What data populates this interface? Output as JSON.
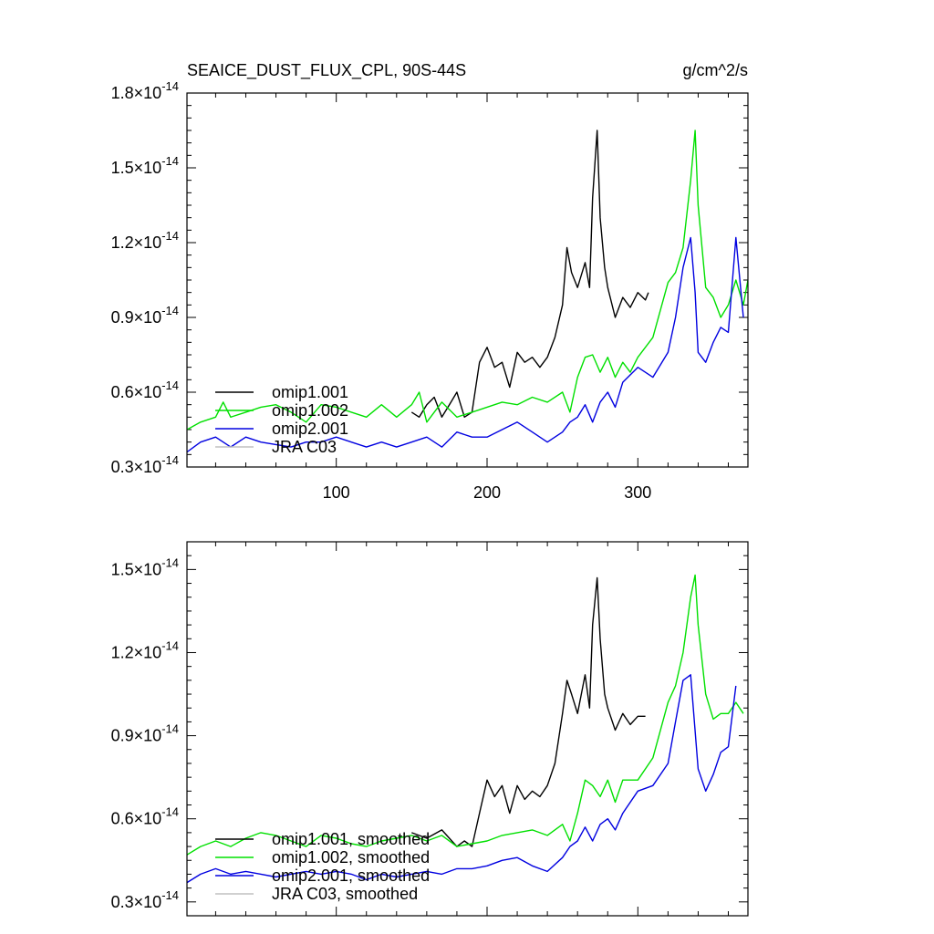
{
  "header": {
    "title": "SEAICE_DUST_FLUX_CPL, 90S-44S",
    "units": "g/cm^2/s"
  },
  "colors": {
    "omip1_001": "#000000",
    "omip1_002": "#00e000",
    "omip2_001": "#0000e0",
    "jra_c03": "#c0c0c0"
  },
  "chart_data": [
    {
      "type": "line",
      "title": "SEAICE_DUST_FLUX_CPL, 90S-44S",
      "units": "g/cm^2/s",
      "xlim": [
        1,
        373
      ],
      "ylim": [
        0.3,
        1.8
      ],
      "y_multiplier": "×10^-14",
      "x_ticks": [
        100,
        200,
        300
      ],
      "x_tick_labels": [
        "100",
        "200",
        "300"
      ],
      "y_ticks": [
        0.3,
        0.6,
        0.9,
        1.2,
        1.5,
        1.8
      ],
      "y_tick_labels": [
        "0.3",
        "0.6",
        "0.9",
        "1.2",
        "1.5",
        "1.8"
      ],
      "legend_position": "bottom-left",
      "series": [
        {
          "name": "omip1.001",
          "x": [
            150,
            155,
            160,
            165,
            170,
            175,
            180,
            185,
            190,
            195,
            200,
            205,
            210,
            215,
            220,
            225,
            230,
            235,
            240,
            245,
            250,
            253,
            256,
            260,
            265,
            268,
            270,
            273,
            275,
            278,
            280,
            285,
            290,
            295,
            300,
            305,
            307
          ],
          "y": [
            0.52,
            0.5,
            0.55,
            0.58,
            0.5,
            0.55,
            0.6,
            0.5,
            0.52,
            0.72,
            0.78,
            0.7,
            0.72,
            0.62,
            0.76,
            0.72,
            0.74,
            0.7,
            0.74,
            0.82,
            0.95,
            1.18,
            1.08,
            1.02,
            1.12,
            1.02,
            1.38,
            1.65,
            1.3,
            1.1,
            1.02,
            0.9,
            0.98,
            0.94,
            1.0,
            0.97,
            1.0
          ]
        },
        {
          "name": "omip1.002",
          "x": [
            1,
            10,
            20,
            25,
            30,
            40,
            50,
            60,
            70,
            80,
            90,
            100,
            110,
            120,
            130,
            140,
            150,
            155,
            160,
            170,
            180,
            190,
            200,
            210,
            220,
            230,
            240,
            250,
            255,
            260,
            265,
            270,
            275,
            280,
            285,
            290,
            295,
            300,
            310,
            320,
            325,
            330,
            335,
            338,
            340,
            345,
            350,
            355,
            360,
            365,
            370,
            373
          ],
          "y": [
            0.45,
            0.48,
            0.5,
            0.56,
            0.5,
            0.52,
            0.54,
            0.55,
            0.52,
            0.48,
            0.55,
            0.54,
            0.52,
            0.5,
            0.55,
            0.5,
            0.55,
            0.6,
            0.48,
            0.56,
            0.5,
            0.52,
            0.54,
            0.56,
            0.55,
            0.58,
            0.56,
            0.6,
            0.52,
            0.66,
            0.74,
            0.75,
            0.68,
            0.74,
            0.66,
            0.72,
            0.68,
            0.74,
            0.82,
            1.04,
            1.08,
            1.18,
            1.45,
            1.65,
            1.35,
            1.02,
            0.98,
            0.9,
            0.95,
            1.05,
            0.95,
            1.05
          ]
        },
        {
          "name": "omip2.001",
          "x": [
            1,
            10,
            20,
            30,
            40,
            50,
            60,
            70,
            80,
            90,
            100,
            110,
            120,
            130,
            140,
            150,
            160,
            170,
            180,
            190,
            200,
            210,
            220,
            230,
            240,
            250,
            255,
            260,
            265,
            270,
            275,
            280,
            285,
            290,
            300,
            310,
            320,
            325,
            330,
            335,
            338,
            340,
            345,
            350,
            355,
            360,
            365,
            370
          ],
          "y": [
            0.36,
            0.4,
            0.42,
            0.38,
            0.42,
            0.4,
            0.39,
            0.38,
            0.4,
            0.4,
            0.42,
            0.4,
            0.38,
            0.4,
            0.38,
            0.4,
            0.42,
            0.38,
            0.44,
            0.42,
            0.42,
            0.45,
            0.48,
            0.44,
            0.4,
            0.44,
            0.48,
            0.5,
            0.55,
            0.48,
            0.56,
            0.6,
            0.54,
            0.64,
            0.7,
            0.66,
            0.76,
            0.9,
            1.1,
            1.22,
            1.0,
            0.76,
            0.72,
            0.8,
            0.86,
            0.84,
            1.22,
            0.9
          ]
        },
        {
          "name": "JRA C03",
          "x": [],
          "y": []
        }
      ]
    },
    {
      "type": "line",
      "xlim": [
        1,
        373
      ],
      "ylim": [
        0.25,
        1.6
      ],
      "y_multiplier": "×10^-14",
      "x_ticks": [
        100,
        200,
        300
      ],
      "y_ticks": [
        0.3,
        0.6,
        0.9,
        1.2,
        1.5
      ],
      "y_tick_labels": [
        "0.3",
        "0.6",
        "0.9",
        "1.2",
        "1.5"
      ],
      "legend_position": "bottom-left",
      "series": [
        {
          "name": "omip1.001, smoothed",
          "x": [
            150,
            160,
            170,
            180,
            185,
            190,
            195,
            200,
            205,
            210,
            215,
            220,
            225,
            230,
            235,
            240,
            245,
            250,
            253,
            256,
            260,
            265,
            268,
            270,
            273,
            275,
            278,
            280,
            285,
            290,
            295,
            300,
            305
          ],
          "y": [
            0.55,
            0.53,
            0.56,
            0.5,
            0.52,
            0.5,
            0.62,
            0.74,
            0.68,
            0.72,
            0.62,
            0.72,
            0.67,
            0.7,
            0.68,
            0.72,
            0.8,
            0.98,
            1.1,
            1.05,
            0.98,
            1.12,
            1.0,
            1.3,
            1.47,
            1.25,
            1.05,
            1.0,
            0.92,
            0.98,
            0.94,
            0.97,
            0.97
          ]
        },
        {
          "name": "omip1.002, smoothed",
          "x": [
            1,
            10,
            20,
            30,
            40,
            50,
            60,
            70,
            80,
            90,
            100,
            110,
            120,
            130,
            140,
            150,
            160,
            170,
            180,
            190,
            200,
            210,
            220,
            230,
            240,
            250,
            255,
            260,
            265,
            270,
            275,
            280,
            285,
            290,
            300,
            310,
            320,
            325,
            330,
            335,
            338,
            340,
            345,
            350,
            355,
            360,
            365,
            370
          ],
          "y": [
            0.47,
            0.5,
            0.52,
            0.5,
            0.53,
            0.55,
            0.54,
            0.52,
            0.5,
            0.54,
            0.53,
            0.51,
            0.5,
            0.52,
            0.53,
            0.54,
            0.52,
            0.54,
            0.5,
            0.51,
            0.52,
            0.54,
            0.55,
            0.56,
            0.54,
            0.58,
            0.52,
            0.62,
            0.74,
            0.72,
            0.68,
            0.74,
            0.66,
            0.74,
            0.74,
            0.82,
            1.02,
            1.08,
            1.2,
            1.4,
            1.48,
            1.3,
            1.05,
            0.96,
            0.98,
            0.98,
            1.02,
            0.98
          ]
        },
        {
          "name": "omip2.001, smoothed",
          "x": [
            1,
            10,
            20,
            30,
            40,
            50,
            60,
            70,
            80,
            90,
            100,
            110,
            120,
            130,
            140,
            150,
            160,
            170,
            180,
            190,
            200,
            210,
            220,
            230,
            240,
            250,
            255,
            260,
            265,
            270,
            275,
            280,
            285,
            290,
            300,
            310,
            320,
            325,
            330,
            335,
            340,
            345,
            350,
            355,
            360,
            365
          ],
          "y": [
            0.37,
            0.4,
            0.42,
            0.4,
            0.41,
            0.4,
            0.39,
            0.4,
            0.41,
            0.4,
            0.41,
            0.4,
            0.38,
            0.4,
            0.39,
            0.4,
            0.41,
            0.4,
            0.42,
            0.42,
            0.43,
            0.45,
            0.46,
            0.43,
            0.41,
            0.46,
            0.5,
            0.52,
            0.57,
            0.52,
            0.58,
            0.6,
            0.56,
            0.62,
            0.7,
            0.72,
            0.8,
            0.95,
            1.1,
            1.12,
            0.78,
            0.7,
            0.76,
            0.84,
            0.86,
            1.08
          ]
        },
        {
          "name": "JRA C03, smoothed",
          "x": [],
          "y": []
        }
      ]
    }
  ]
}
